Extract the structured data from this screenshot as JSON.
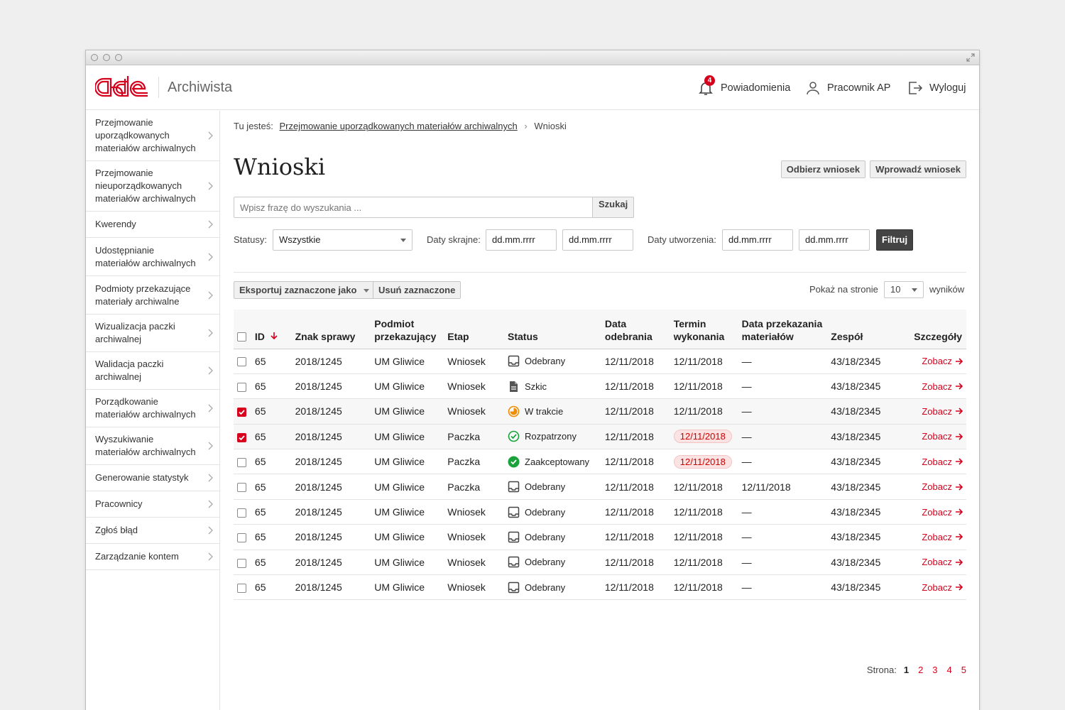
{
  "app": {
    "title": "Archiwista",
    "logo_text": "ade"
  },
  "header": {
    "notifications": {
      "label": "Powiadomienia",
      "count": "4"
    },
    "user": {
      "label": "Pracownik AP"
    },
    "logout": {
      "label": "Wyloguj"
    }
  },
  "sidebar": {
    "items": [
      {
        "label": "Przejmowanie uporządkowanych materiałów archiwalnych"
      },
      {
        "label": "Przejmowanie nieuporządkowanych materiałów archiwalnych"
      },
      {
        "label": "Kwerendy"
      },
      {
        "label": "Udostępnianie materiałów archiwalnych"
      },
      {
        "label": "Podmioty przekazujące materiały archiwalne"
      },
      {
        "label": "Wizualizacja paczki archiwalnej"
      },
      {
        "label": "Walidacja paczki archiwalnej"
      },
      {
        "label": "Porządkowanie materiałów archiwalnych"
      },
      {
        "label": "Wyszukiwanie materiałów archiwalnych"
      },
      {
        "label": "Generowanie statystyk"
      },
      {
        "label": "Pracownicy"
      },
      {
        "label": "Zgłoś błąd"
      },
      {
        "label": "Zarządzanie kontem"
      }
    ]
  },
  "breadcrumb": {
    "prefix": "Tu jesteś:",
    "parent": "Przejmowanie uporządkowanych materiałów archiwalnych",
    "current": "Wnioski"
  },
  "page": {
    "title": "Wnioski",
    "receive_button": "Odbierz wniosek",
    "enter_button": "Wprowadź wniosek"
  },
  "search": {
    "placeholder": "Wpisz frazę do wyszukania ...",
    "button": "Szukaj"
  },
  "filters": {
    "status_label": "Statusy:",
    "status_value": "Wszystkie",
    "extreme_dates_label": "Daty skrajne:",
    "created_dates_label": "Daty utworzenia:",
    "date_placeholder": "dd.mm.rrrr",
    "filter_button": "Filtruj"
  },
  "toolbar": {
    "export_label": "Eksportuj zaznaczone jako",
    "delete_label": "Usuń zaznaczone",
    "per_page_prefix": "Pokaż na stronie",
    "per_page_value": "10",
    "per_page_suffix": "wyników"
  },
  "table": {
    "columns": {
      "id": "ID",
      "case_no": "Znak sprawy",
      "entity": "Podmiot przekazujący",
      "stage": "Etap",
      "status": "Status",
      "received": "Data odebrania",
      "deadline": "Termin wykonania",
      "transfer": "Data przekazania materiałów",
      "team": "Zespół",
      "details": "Szczegóły"
    },
    "rows": [
      {
        "id": "65",
        "case": "2018/1245",
        "entity": "UM Gliwice",
        "stage": "Wniosek",
        "status": "Odebrany",
        "status_icon": "inbox-icon",
        "received": "12/11/2018",
        "deadline": "12/11/2018",
        "deadline_overdue": false,
        "transfer": "—",
        "team": "43/18/2345",
        "details": "Zobacz",
        "checked": false
      },
      {
        "id": "65",
        "case": "2018/1245",
        "entity": "UM Gliwice",
        "stage": "Wniosek",
        "status": "Szkic",
        "status_icon": "document-icon",
        "received": "12/11/2018",
        "deadline": "12/11/2018",
        "deadline_overdue": false,
        "transfer": "—",
        "team": "43/18/2345",
        "details": "Zobacz",
        "checked": false
      },
      {
        "id": "65",
        "case": "2018/1245",
        "entity": "UM Gliwice",
        "stage": "Wniosek",
        "status": "W trakcie",
        "status_icon": "in-progress-icon",
        "received": "12/11/2018",
        "deadline": "12/11/2018",
        "deadline_overdue": false,
        "transfer": "—",
        "team": "43/18/2345",
        "details": "Zobacz",
        "checked": true
      },
      {
        "id": "65",
        "case": "2018/1245",
        "entity": "UM Gliwice",
        "stage": "Paczka",
        "status": "Rozpatrzony",
        "status_icon": "check-outline-icon",
        "received": "12/11/2018",
        "deadline": "12/11/2018",
        "deadline_overdue": true,
        "transfer": "—",
        "team": "43/18/2345",
        "details": "Zobacz",
        "checked": true
      },
      {
        "id": "65",
        "case": "2018/1245",
        "entity": "UM Gliwice",
        "stage": "Paczka",
        "status": "Zaakceptowany",
        "status_icon": "check-filled-icon",
        "received": "12/11/2018",
        "deadline": "12/11/2018",
        "deadline_overdue": true,
        "transfer": "—",
        "team": "43/18/2345",
        "details": "Zobacz",
        "checked": false
      },
      {
        "id": "65",
        "case": "2018/1245",
        "entity": "UM Gliwice",
        "stage": "Paczka",
        "status": "Odebrany",
        "status_icon": "inbox-icon",
        "received": "12/11/2018",
        "deadline": "12/11/2018",
        "deadline_overdue": false,
        "transfer": "12/11/2018",
        "team": "43/18/2345",
        "details": "Zobacz",
        "checked": false
      },
      {
        "id": "65",
        "case": "2018/1245",
        "entity": "UM Gliwice",
        "stage": "Wniosek",
        "status": "Odebrany",
        "status_icon": "inbox-icon",
        "received": "12/11/2018",
        "deadline": "12/11/2018",
        "deadline_overdue": false,
        "transfer": "—",
        "team": "43/18/2345",
        "details": "Zobacz",
        "checked": false
      },
      {
        "id": "65",
        "case": "2018/1245",
        "entity": "UM Gliwice",
        "stage": "Wniosek",
        "status": "Odebrany",
        "status_icon": "inbox-icon",
        "received": "12/11/2018",
        "deadline": "12/11/2018",
        "deadline_overdue": false,
        "transfer": "—",
        "team": "43/18/2345",
        "details": "Zobacz",
        "checked": false
      },
      {
        "id": "65",
        "case": "2018/1245",
        "entity": "UM Gliwice",
        "stage": "Wniosek",
        "status": "Odebrany",
        "status_icon": "inbox-icon",
        "received": "12/11/2018",
        "deadline": "12/11/2018",
        "deadline_overdue": false,
        "transfer": "—",
        "team": "43/18/2345",
        "details": "Zobacz",
        "checked": false
      },
      {
        "id": "65",
        "case": "2018/1245",
        "entity": "UM Gliwice",
        "stage": "Wniosek",
        "status": "Odebrany",
        "status_icon": "inbox-icon",
        "received": "12/11/2018",
        "deadline": "12/11/2018",
        "deadline_overdue": false,
        "transfer": "—",
        "team": "43/18/2345",
        "details": "Zobacz",
        "checked": false
      }
    ]
  },
  "pagination": {
    "label": "Strona:",
    "pages": [
      "1",
      "2",
      "3",
      "4",
      "5"
    ],
    "current": "1"
  },
  "colors": {
    "accent": "#d6001c",
    "green": "#1aa33b",
    "orange": "#f08c00",
    "overdue_bg": "#fbe3e3"
  }
}
